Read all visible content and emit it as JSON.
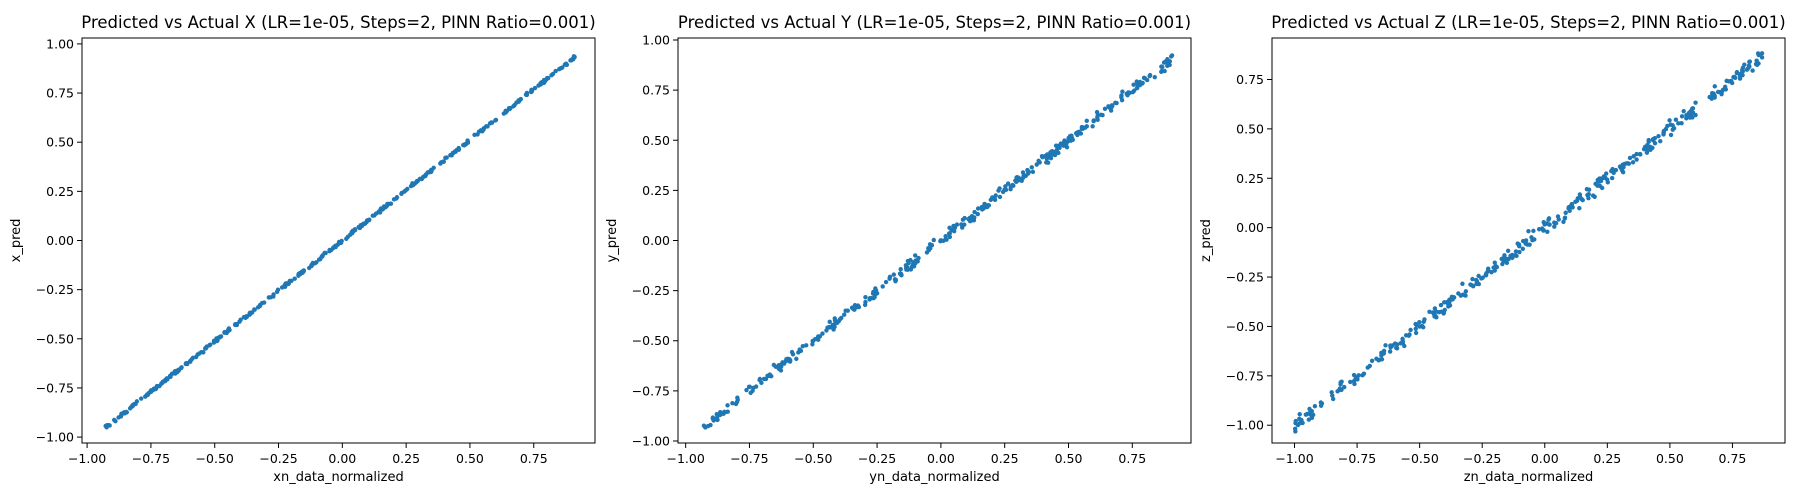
{
  "chart_data": [
    {
      "type": "scatter",
      "title": "Predicted vs Actual X (LR=1e-05, Steps=2, PINN Ratio=0.001)",
      "xlabel": "xn_data_normalized",
      "ylabel": "x_pred",
      "xlim": [
        -1.02,
        0.99
      ],
      "ylim": [
        -1.03,
        1.03
      ],
      "xticks": [
        -1.0,
        -0.75,
        -0.5,
        -0.25,
        0.0,
        0.25,
        0.5,
        0.75
      ],
      "xtick_labels": [
        "−1.00",
        "−0.75",
        "−0.50",
        "−0.25",
        "0.00",
        "0.25",
        "0.50",
        "0.75"
      ],
      "yticks": [
        -1.0,
        -0.75,
        -0.5,
        -0.25,
        0.0,
        0.25,
        0.5,
        0.75,
        1.0
      ],
      "ytick_labels": [
        "−1.00",
        "−0.75",
        "−0.50",
        "−0.25",
        "0.00",
        "0.25",
        "0.50",
        "0.75",
        "1.00"
      ],
      "color": "#1f77b4",
      "grid": false,
      "points": {
        "x_range": [
          -0.93,
          0.91
        ],
        "slope": 1.025,
        "intercept": 0.0,
        "noise": 0.004,
        "n": 360
      }
    },
    {
      "type": "scatter",
      "title": "Predicted vs Actual Y (LR=1e-05, Steps=2, PINN Ratio=0.001)",
      "xlabel": "yn_data_normalized",
      "ylabel": "y_pred",
      "xlim": [
        -1.03,
        0.98
      ],
      "ylim": [
        -1.01,
        1.01
      ],
      "xticks": [
        -1.0,
        -0.75,
        -0.5,
        -0.25,
        0.0,
        0.25,
        0.5,
        0.75
      ],
      "xtick_labels": [
        "−1.00",
        "−0.75",
        "−0.50",
        "−0.25",
        "0.00",
        "0.25",
        "0.50",
        "0.75"
      ],
      "yticks": [
        -1.0,
        -0.75,
        -0.5,
        -0.25,
        0.0,
        0.25,
        0.5,
        0.75,
        1.0
      ],
      "ytick_labels": [
        "−1.00",
        "−0.75",
        "−0.50",
        "−0.25",
        "0.00",
        "0.25",
        "0.50",
        "0.75",
        "1.00"
      ],
      "color": "#1f77b4",
      "grid": false,
      "points": {
        "x_range": [
          -0.93,
          0.91
        ],
        "slope": 1.0,
        "intercept": 0.0,
        "noise": 0.012,
        "n": 360
      }
    },
    {
      "type": "scatter",
      "title": "Predicted vs Actual Z (LR=1e-05, Steps=2, PINN Ratio=0.001)",
      "xlabel": "zn_data_normalized",
      "ylabel": "z_pred",
      "xlim": [
        -1.09,
        0.96
      ],
      "ylim": [
        -1.09,
        0.96
      ],
      "xticks": [
        -1.0,
        -0.75,
        -0.5,
        -0.25,
        0.0,
        0.25,
        0.5,
        0.75
      ],
      "xtick_labels": [
        "−1.00",
        "−0.75",
        "−0.50",
        "−0.25",
        "0.00",
        "0.25",
        "0.50",
        "0.75"
      ],
      "yticks": [
        -1.0,
        -0.75,
        -0.5,
        -0.25,
        0.0,
        0.25,
        0.5,
        0.75
      ],
      "ytick_labels": [
        "−1.00",
        "−0.75",
        "−0.50",
        "−0.25",
        "0.00",
        "0.25",
        "0.50",
        "0.75"
      ],
      "color": "#1f77b4",
      "grid": false,
      "points": {
        "x_range": [
          -1.0,
          0.88
        ],
        "slope": 1.0,
        "intercept": 0.0,
        "noise": 0.018,
        "n": 360
      }
    }
  ]
}
